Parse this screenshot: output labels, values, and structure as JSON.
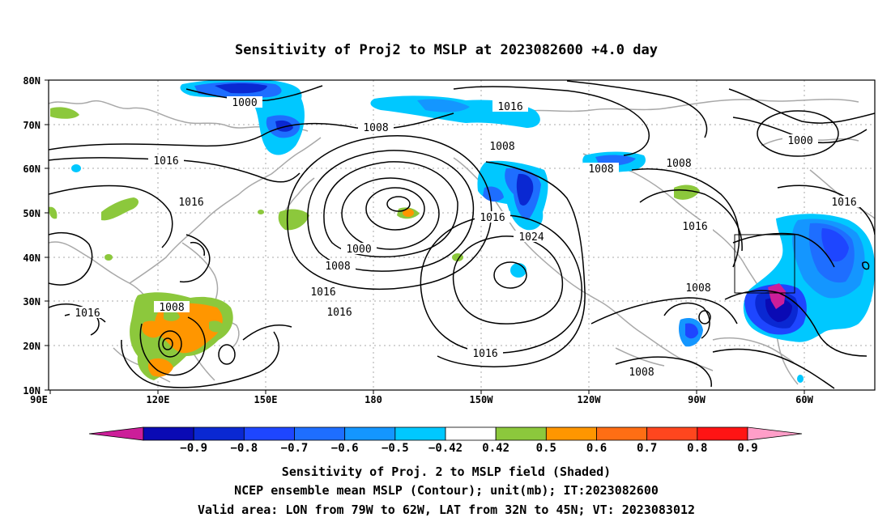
{
  "title": "Sensitivity of Proj2 to MSLP at 2023082600 +4.0 day",
  "axes": {
    "lat_ticks": [
      "80N",
      "70N",
      "60N",
      "50N",
      "40N",
      "30N",
      "20N",
      "10N"
    ],
    "lon_ticks": [
      "90E",
      "120E",
      "150E",
      "180",
      "150W",
      "120W",
      "90W",
      "60W"
    ]
  },
  "contour_labels": [
    {
      "id": "c1",
      "text": "1000"
    },
    {
      "id": "c2",
      "text": "1008"
    },
    {
      "id": "c3",
      "text": "1016"
    },
    {
      "id": "c4",
      "text": "1008"
    },
    {
      "id": "c5",
      "text": "1008"
    },
    {
      "id": "c6",
      "text": "1016"
    },
    {
      "id": "c7",
      "text": "1000"
    },
    {
      "id": "c8",
      "text": "1016"
    },
    {
      "id": "c9",
      "text": "1016"
    },
    {
      "id": "c10",
      "text": "1000"
    },
    {
      "id": "c11",
      "text": "1008"
    },
    {
      "id": "c12",
      "text": "1016"
    },
    {
      "id": "c13",
      "text": "1016"
    },
    {
      "id": "c14",
      "text": "1024"
    },
    {
      "id": "c15",
      "text": "1016"
    },
    {
      "id": "c16",
      "text": "1016"
    },
    {
      "id": "c17",
      "text": "1016"
    },
    {
      "id": "c18",
      "text": "1008"
    },
    {
      "id": "c19",
      "text": "1016"
    },
    {
      "id": "c20",
      "text": "1008"
    },
    {
      "id": "c21",
      "text": "1008"
    },
    {
      "id": "c22",
      "text": "1016"
    },
    {
      "id": "c23",
      "text": "1008"
    }
  ],
  "colorbar": {
    "colors": [
      "#cc1e99",
      "#0a0ab4",
      "#0a28d2",
      "#1e46ff",
      "#1e6eff",
      "#1496ff",
      "#00c8ff",
      "#ffffff",
      "#8cc83c",
      "#ff9600",
      "#ff6e14",
      "#ff461e",
      "#ff1414",
      "#ff9ec8"
    ],
    "ticks": [
      "−0.9",
      "−0.8",
      "−0.7",
      "−0.6",
      "−0.5",
      "−0.42",
      "0.42",
      "0.5",
      "0.6",
      "0.7",
      "0.8",
      "0.9"
    ]
  },
  "captions": [
    "Sensitivity of Proj. 2 to MSLP field (Shaded)",
    "NCEP ensemble mean MSLP (Contour); unit(mb); IT:2023082600",
    "Valid area: LON from 79W to 62W, LAT from 32N to 45N; VT: 2023083012"
  ]
}
